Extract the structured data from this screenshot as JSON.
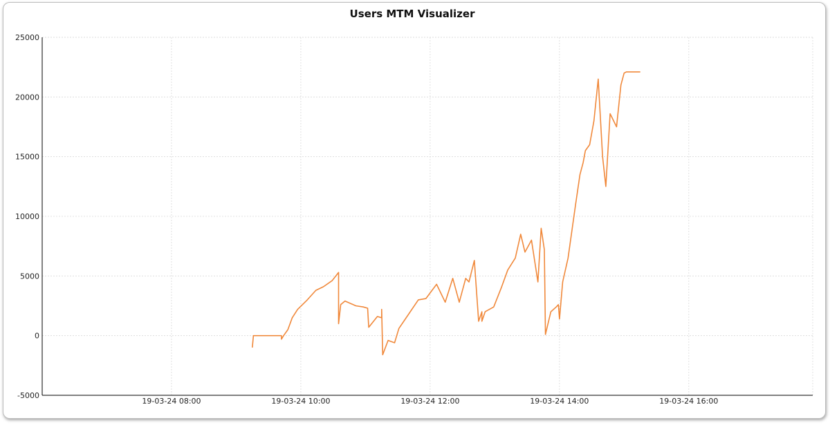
{
  "chart_data": {
    "type": "line",
    "title": "Users MTM Visualizer",
    "xlabel": "",
    "ylabel": "",
    "ylim": [
      -5000,
      25000
    ],
    "yticks": [
      -5000,
      0,
      5000,
      10000,
      15000,
      20000,
      25000
    ],
    "xlim": [
      "19-03-24 06:00",
      "19-03-24 17:55"
    ],
    "xticks": [
      "19-03-24 08:00",
      "19-03-24 10:00",
      "19-03-24 12:00",
      "19-03-24 14:00",
      "19-03-24 16:00"
    ],
    "grid": true,
    "legend": "none",
    "series": [
      {
        "color": "#f0883a",
        "x": [
          "19-03-24 09:15",
          "19-03-24 09:16",
          "19-03-24 09:21",
          "19-03-24 09:42",
          "19-03-24 09:42",
          "19-03-24 09:44",
          "19-03-24 09:48",
          "19-03-24 09:52",
          "19-03-24 09:57",
          "19-03-24 10:06",
          "19-03-24 10:14",
          "19-03-24 10:21",
          "19-03-24 10:29",
          "19-03-24 10:35",
          "19-03-24 10:35",
          "19-03-24 10:37",
          "19-03-24 10:41",
          "19-03-24 10:51",
          "19-03-24 10:58",
          "19-03-24 11:02",
          "19-03-24 11:03",
          "19-03-24 11:11",
          "19-03-24 11:15",
          "19-03-24 11:15",
          "19-03-24 11:16",
          "19-03-24 11:21",
          "19-03-24 11:27",
          "19-03-24 11:31",
          "19-03-24 11:37",
          "19-03-24 11:49",
          "19-03-24 11:56",
          "19-03-24 12:06",
          "19-03-24 12:14",
          "19-03-24 12:21",
          "19-03-24 12:27",
          "19-03-24 12:33",
          "19-03-24 12:36",
          "19-03-24 12:41",
          "19-03-24 12:45",
          "19-03-24 12:48",
          "19-03-24 12:48",
          "19-03-24 12:51",
          "19-03-24 12:59",
          "19-03-24 13:06",
          "19-03-24 13:12",
          "19-03-24 13:19",
          "19-03-24 13:24",
          "19-03-24 13:28",
          "19-03-24 13:34",
          "19-03-24 13:40",
          "19-03-24 13:43",
          "19-03-24 13:46",
          "19-03-24 13:47",
          "19-03-24 13:52",
          "19-03-24 13:57",
          "19-03-24 13:59",
          "19-03-24 14:00",
          "19-03-24 14:03",
          "19-03-24 14:08",
          "19-03-24 14:15",
          "19-03-24 14:19",
          "19-03-24 14:22",
          "19-03-24 14:24",
          "19-03-24 14:28",
          "19-03-24 14:32",
          "19-03-24 14:36",
          "19-03-24 14:40",
          "19-03-24 14:43",
          "19-03-24 14:47",
          "19-03-24 14:53",
          "19-03-24 14:57",
          "19-03-24 15:00",
          "19-03-24 15:02",
          "19-03-24 15:04",
          "19-03-24 15:06",
          "19-03-24 15:08",
          "19-03-24 15:10",
          "19-03-24 15:13",
          "19-03-24 15:15"
        ],
        "y": [
          -1000,
          0,
          0,
          0,
          -300,
          0,
          500,
          1500,
          2200,
          3000,
          3800,
          4100,
          4600,
          5300,
          1000,
          2600,
          2900,
          2500,
          2400,
          2300,
          700,
          1600,
          1500,
          2200,
          -1600,
          -400,
          -600,
          600,
          1400,
          3000,
          3100,
          4300,
          2800,
          4800,
          2800,
          4800,
          4500,
          6300,
          1200,
          2000,
          1200,
          2000,
          2400,
          4000,
          5500,
          6500,
          8500,
          7000,
          8000,
          4500,
          9000,
          7200,
          100,
          2000,
          2400,
          2600,
          1400,
          4500,
          6500,
          11000,
          13500,
          14500,
          15500,
          16000,
          18000,
          21500,
          15000,
          12500,
          18600,
          17500,
          21000,
          22000,
          22100,
          22100,
          22100,
          22100,
          22100,
          22100,
          22100
        ]
      }
    ]
  }
}
